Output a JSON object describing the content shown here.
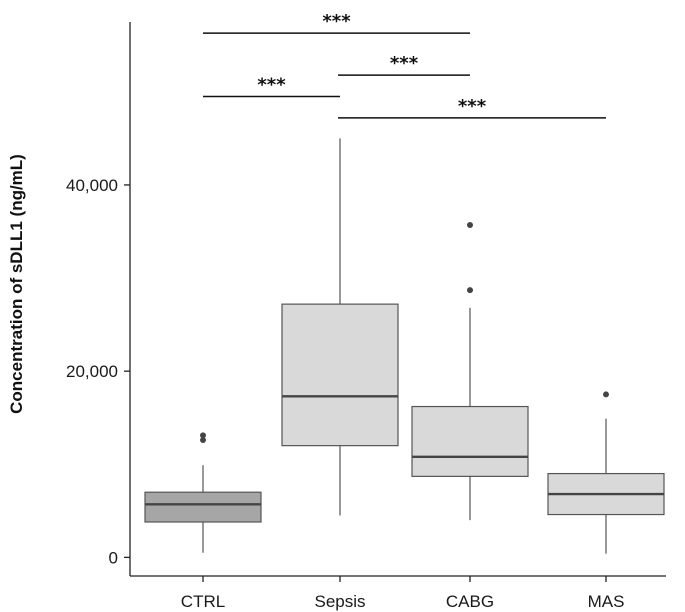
{
  "chart_data": {
    "type": "box",
    "title": "",
    "xlabel": "",
    "ylabel": "Concentration of sDLL1 (ng/mL)",
    "ylim": [
      -2000,
      57500
    ],
    "yticks": [
      {
        "value": 0,
        "label": "0"
      },
      {
        "value": 20000,
        "label": "20,000"
      },
      {
        "value": 40000,
        "label": "40,000"
      }
    ],
    "categories": [
      "CTRL",
      "Sepsis",
      "CABG",
      "MAS"
    ],
    "boxes": [
      {
        "category": "CTRL",
        "min": 500,
        "q1": 3800,
        "median": 5700,
        "q3": 7000,
        "max": 9900,
        "outliers": [
          12600,
          13100
        ],
        "color": "#a6a6a6"
      },
      {
        "category": "Sepsis",
        "min": 4500,
        "q1": 12000,
        "median": 17300,
        "q3": 27200,
        "max": 45000,
        "outliers": [],
        "color": "#d9d9d9"
      },
      {
        "category": "CABG",
        "min": 4000,
        "q1": 8700,
        "median": 10800,
        "q3": 16200,
        "max": 26800,
        "outliers": [
          28700,
          35700
        ],
        "color": "#d9d9d9"
      },
      {
        "category": "MAS",
        "min": 400,
        "q1": 4600,
        "median": 6800,
        "q3": 9000,
        "max": 14900,
        "outliers": [
          17500
        ],
        "color": "#d9d9d9"
      }
    ],
    "significance": [
      {
        "from": "CTRL",
        "to": "CABG",
        "label": "***",
        "level": 56300
      },
      {
        "from": "Sepsis",
        "to": "CABG",
        "label": "***",
        "level": 51800
      },
      {
        "from": "CTRL",
        "to": "Sepsis",
        "label": "***",
        "level": 49500
      },
      {
        "from": "Sepsis",
        "to": "MAS",
        "label": "***",
        "level": 47200
      }
    ]
  }
}
